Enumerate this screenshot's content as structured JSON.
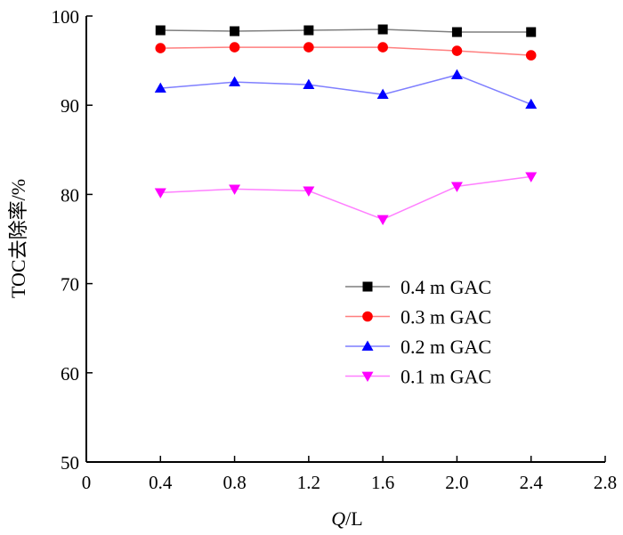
{
  "chart_data": {
    "type": "line",
    "xlabel_italic": "Q",
    "xlabel_rest": "/L",
    "ylabel": "TOC去除率/%",
    "xlim": [
      0,
      2.8
    ],
    "ylim": [
      50,
      100
    ],
    "xticks": [
      0,
      0.4,
      0.8,
      1.2,
      1.6,
      2.0,
      2.4,
      2.8
    ],
    "xtick_labels": [
      "0",
      "0.4",
      "0.8",
      "1.2",
      "1.6",
      "2.0",
      "2.4",
      "2.8"
    ],
    "yticks": [
      50,
      60,
      70,
      80,
      90,
      100
    ],
    "ytick_labels": [
      "50",
      "60",
      "70",
      "80",
      "90",
      "100"
    ],
    "x": [
      0.4,
      0.8,
      1.2,
      1.6,
      2.0,
      2.4
    ],
    "legend_position": "center-right",
    "grid": false,
    "series": [
      {
        "name": "0.4 m GAC",
        "values": [
          98.4,
          98.3,
          98.4,
          98.5,
          98.2,
          98.2
        ],
        "color": "#000000",
        "line_color": "#7f7f7f",
        "marker": "square"
      },
      {
        "name": "0.3 m GAC",
        "values": [
          96.4,
          96.5,
          96.5,
          96.5,
          96.1,
          95.6
        ],
        "color": "#ff0000",
        "line_color": "#ff7f7f",
        "marker": "circle"
      },
      {
        "name": "0.2 m GAC",
        "values": [
          91.9,
          92.6,
          92.3,
          91.2,
          93.4,
          90.1
        ],
        "color": "#0000ff",
        "line_color": "#7f7fff",
        "marker": "triangle-up"
      },
      {
        "name": "0.1 m GAC",
        "values": [
          80.2,
          80.6,
          80.4,
          77.2,
          80.9,
          82.0
        ],
        "color": "#ff00ff",
        "line_color": "#ff7fff",
        "marker": "triangle-down"
      }
    ]
  }
}
